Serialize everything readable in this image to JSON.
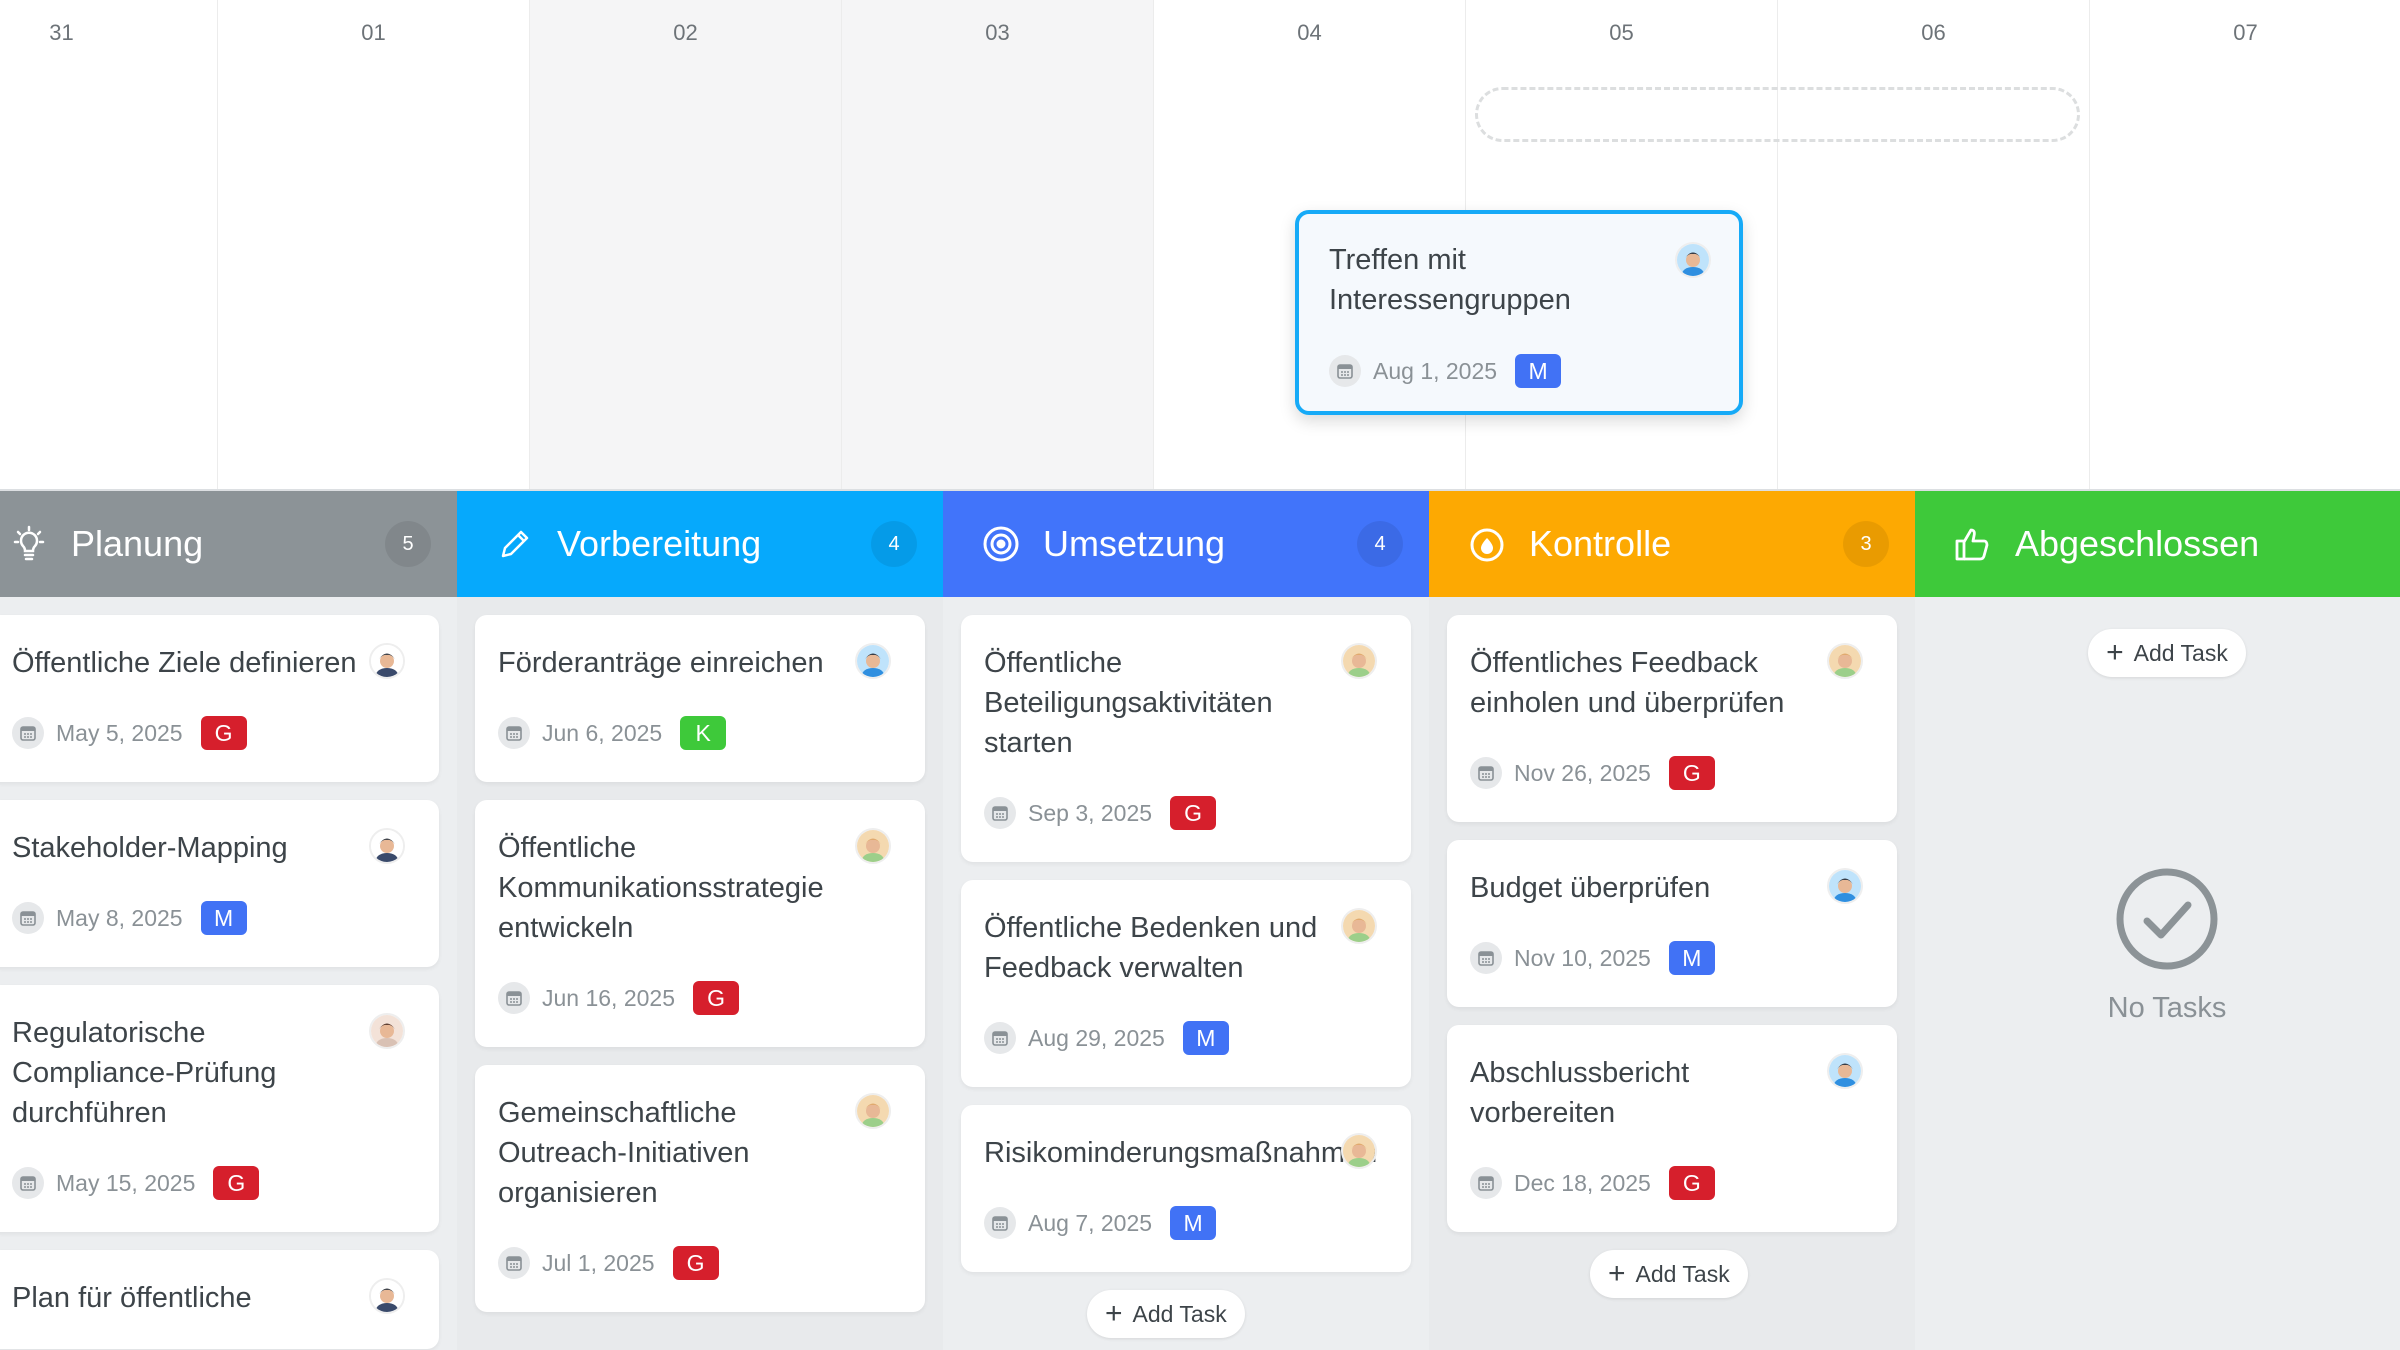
{
  "timeline": {
    "days": [
      "31",
      "01",
      "02",
      "03",
      "04",
      "05",
      "06",
      "07"
    ],
    "card": {
      "title": "Treffen mit Interessengruppen",
      "date": "Aug 1, 2025",
      "badge": "M",
      "badge_color": "#4172f5",
      "avatar": "man-dark-hair"
    }
  },
  "colors": {
    "G": "#d61f2c",
    "M": "#4172f5",
    "K": "#3ec93a"
  },
  "columns": [
    {
      "title": "Planung",
      "count": "5",
      "color": "#8c9397",
      "icon": "lightbulb-icon",
      "cards": [
        {
          "title": "Öffentliche Ziele definieren",
          "date": "May 5, 2025",
          "badge": "G",
          "avatar": "man-suit"
        },
        {
          "title": "Stakeholder-Mapping",
          "date": "May 8, 2025",
          "badge": "M",
          "avatar": "man-suit"
        },
        {
          "title": "Regulatorische Compliance-Prüfung durchführen",
          "date": "May 15, 2025",
          "badge": "G",
          "avatar": "man-glasses"
        },
        {
          "title": "Plan für öffentliche",
          "date": "",
          "badge": "",
          "avatar": "man-suit"
        }
      ]
    },
    {
      "title": "Vorbereitung",
      "count": "4",
      "color": "#06a9fc",
      "icon": "pencil-icon",
      "cards": [
        {
          "title": "Förderanträge einreichen",
          "date": "Jun 6, 2025",
          "badge": "K",
          "avatar": "man-dark-hair"
        },
        {
          "title": "Öffentliche Kommunikationsstrategie entwickeln",
          "date": "Jun 16, 2025",
          "badge": "G",
          "avatar": "woman-blonde"
        },
        {
          "title": "Gemeinschaftliche Outreach-Initiativen organisieren",
          "date": "Jul 1, 2025",
          "badge": "G",
          "avatar": "woman-blonde"
        }
      ]
    },
    {
      "title": "Umsetzung",
      "count": "4",
      "color": "#4174fa",
      "icon": "target-icon",
      "add_task": "Add Task",
      "cards": [
        {
          "title": "Öffentliche Beteiligungsaktivitäten starten",
          "date": "Sep 3, 2025",
          "badge": "G",
          "avatar": "woman-blonde"
        },
        {
          "title": "Öffentliche Bedenken und Feedback verwalten",
          "date": "Aug 29, 2025",
          "badge": "M",
          "avatar": "woman-blonde"
        },
        {
          "title": "Risikominderungsmaßnahmen",
          "date": "Aug 7, 2025",
          "badge": "M",
          "avatar": "woman-blonde"
        }
      ]
    },
    {
      "title": "Kontrolle",
      "count": "3",
      "color": "#fda902",
      "icon": "stopwatch-icon",
      "add_task": "Add Task",
      "cards": [
        {
          "title": "Öffentliches Feedback einholen und überprüfen",
          "date": "Nov 26, 2025",
          "badge": "G",
          "avatar": "woman-blonde"
        },
        {
          "title": "Budget überprüfen",
          "date": "Nov 10, 2025",
          "badge": "M",
          "avatar": "man-dark-hair"
        },
        {
          "title": "Abschlussbericht vorbereiten",
          "date": "Dec 18, 2025",
          "badge": "G",
          "avatar": "man-dark-hair"
        }
      ]
    },
    {
      "title": "Abgeschlossen",
      "count": "",
      "color": "#3ec93a",
      "icon": "thumbs-up-icon",
      "add_task": "Add Task",
      "empty": "No Tasks",
      "cards": []
    }
  ]
}
